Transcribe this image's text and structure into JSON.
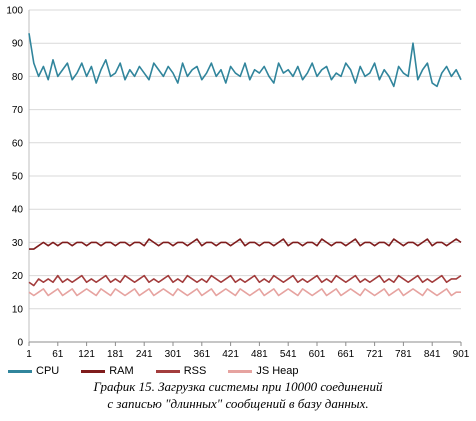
{
  "chart_data": {
    "type": "line",
    "title": "",
    "xlabel": "",
    "ylabel": "",
    "ylim": [
      0,
      100
    ],
    "yticks": [
      0,
      10,
      20,
      30,
      40,
      50,
      60,
      70,
      80,
      90,
      100
    ],
    "xlim": [
      1,
      901
    ],
    "xticks": [
      1,
      61,
      121,
      181,
      241,
      301,
      361,
      421,
      481,
      541,
      601,
      661,
      721,
      781,
      841,
      901
    ],
    "grid": "horizontal",
    "legend_position": "bottom-left",
    "sample_step": 10,
    "series": [
      {
        "name": "CPU",
        "color": "#31859c",
        "values": [
          93,
          84,
          80,
          83,
          79,
          85,
          80,
          82,
          84,
          79,
          81,
          84,
          80,
          83,
          78,
          82,
          85,
          80,
          81,
          84,
          79,
          82,
          80,
          83,
          81,
          79,
          84,
          82,
          80,
          83,
          81,
          78,
          84,
          80,
          82,
          83,
          79,
          81,
          84,
          80,
          82,
          78,
          83,
          81,
          80,
          84,
          79,
          82,
          81,
          83,
          80,
          78,
          84,
          81,
          82,
          80,
          83,
          79,
          81,
          84,
          80,
          82,
          83,
          79,
          81,
          80,
          84,
          82,
          78,
          83,
          80,
          81,
          84,
          79,
          82,
          80,
          77,
          83,
          81,
          80,
          90,
          79,
          82,
          84,
          78,
          77,
          81,
          83,
          80,
          82,
          79
        ]
      },
      {
        "name": "RAM",
        "color": "#7f1c1c",
        "values": [
          28,
          28,
          29,
          30,
          29,
          30,
          29,
          30,
          30,
          29,
          30,
          30,
          29,
          30,
          30,
          29,
          30,
          30,
          29,
          30,
          30,
          29,
          30,
          30,
          29,
          31,
          30,
          29,
          30,
          30,
          29,
          30,
          30,
          29,
          30,
          31,
          29,
          30,
          30,
          29,
          30,
          30,
          29,
          30,
          31,
          29,
          30,
          30,
          29,
          30,
          30,
          29,
          30,
          31,
          29,
          30,
          30,
          29,
          30,
          30,
          29,
          31,
          30,
          29,
          30,
          30,
          29,
          30,
          31,
          29,
          30,
          30,
          29,
          30,
          30,
          29,
          31,
          30,
          29,
          30,
          30,
          29,
          30,
          31,
          29,
          30,
          30,
          29,
          30,
          31,
          30
        ]
      },
      {
        "name": "RSS",
        "color": "#a33d3d",
        "values": [
          18,
          17,
          19,
          18,
          19,
          18,
          20,
          18,
          19,
          18,
          19,
          20,
          18,
          19,
          18,
          19,
          20,
          18,
          19,
          18,
          20,
          19,
          18,
          19,
          20,
          18,
          19,
          18,
          19,
          20,
          18,
          19,
          18,
          20,
          19,
          18,
          19,
          18,
          20,
          19,
          18,
          19,
          20,
          18,
          19,
          18,
          19,
          20,
          18,
          19,
          18,
          20,
          19,
          18,
          19,
          20,
          18,
          19,
          18,
          19,
          20,
          18,
          19,
          18,
          20,
          19,
          18,
          19,
          20,
          18,
          19,
          18,
          19,
          20,
          18,
          19,
          18,
          20,
          19,
          18,
          19,
          20,
          18,
          19,
          18,
          19,
          20,
          18,
          19,
          19,
          20
        ]
      },
      {
        "name": "JS Heap",
        "color": "#e6a3a0",
        "values": [
          15,
          14,
          15,
          16,
          14,
          15,
          16,
          14,
          15,
          16,
          14,
          15,
          16,
          15,
          14,
          16,
          15,
          14,
          16,
          15,
          14,
          15,
          16,
          14,
          15,
          16,
          14,
          15,
          16,
          15,
          14,
          16,
          15,
          14,
          15,
          16,
          14,
          15,
          16,
          14,
          15,
          16,
          15,
          14,
          16,
          15,
          14,
          15,
          16,
          14,
          15,
          16,
          14,
          15,
          16,
          15,
          14,
          16,
          15,
          14,
          15,
          16,
          14,
          15,
          16,
          14,
          15,
          16,
          15,
          14,
          16,
          15,
          14,
          15,
          16,
          14,
          15,
          16,
          14,
          15,
          16,
          15,
          14,
          16,
          15,
          14,
          15,
          16,
          14,
          15,
          15
        ]
      }
    ]
  },
  "caption": {
    "line1": "График 15. Загрузка системы при 10000 соединений",
    "line2": "с записью \"длинных\" сообщений в базу данных."
  }
}
